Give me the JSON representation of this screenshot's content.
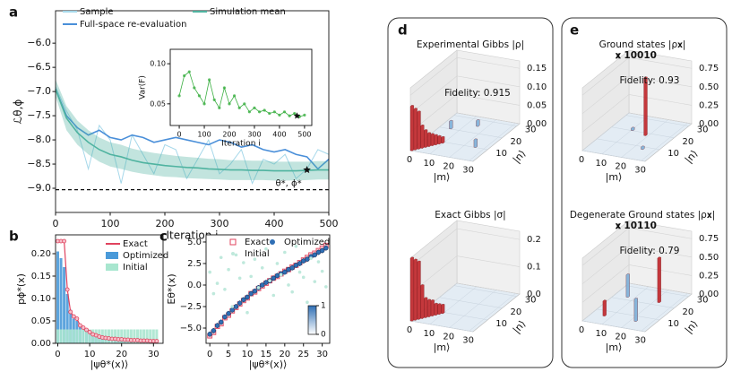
{
  "chart_data": [
    {
      "type": "line",
      "panel": "a",
      "xlim": [
        0,
        500
      ],
      "ylim": [
        -9.5,
        -5.33
      ],
      "xticks": [
        0,
        100,
        200,
        300,
        400,
        500
      ],
      "yticks": [
        {
          "value": -6,
          "label": "−6.0"
        },
        {
          "value": -6.5,
          "label": "−6.5"
        },
        {
          "value": -7,
          "label": "−7.0"
        },
        {
          "value": -7.5,
          "label": "−7.5"
        },
        {
          "value": -8,
          "label": "−8.0"
        },
        {
          "value": -8.5,
          "label": "−8.5"
        },
        {
          "value": -9,
          "label": "−9.0"
        }
      ],
      "xlabel": "Iteration i",
      "ylabel": "ℒθ,ϕ",
      "x": [
        0,
        20,
        40,
        60,
        80,
        100,
        120,
        140,
        160,
        180,
        200,
        220,
        240,
        260,
        280,
        300,
        320,
        340,
        360,
        380,
        400,
        420,
        440,
        460,
        480,
        500
      ],
      "series": [
        {
          "name": "Sample",
          "color": "#a6d8ea",
          "values": [
            -6.9,
            -7.4,
            -7.8,
            -8.6,
            -7.7,
            -8.0,
            -8.9,
            -7.9,
            -8.3,
            -8.7,
            -8.1,
            -8.2,
            -8.8,
            -8.4,
            -8.0,
            -8.7,
            -8.5,
            -8.2,
            -8.9,
            -8.4,
            -8.5,
            -8.3,
            -8.8,
            -8.6,
            -8.2,
            -8.3
          ]
        },
        {
          "name": "Full-space re-evaluation",
          "color": "#4a8fd9",
          "values": [
            -6.95,
            -7.5,
            -7.75,
            -7.9,
            -7.8,
            -7.95,
            -8.0,
            -7.9,
            -7.95,
            -8.05,
            -8.0,
            -7.95,
            -8.0,
            -8.05,
            -8.1,
            -8.0,
            -8.05,
            -8.15,
            -8.1,
            -8.2,
            -8.25,
            -8.2,
            -8.3,
            -8.35,
            -8.6,
            -8.4
          ]
        },
        {
          "name": "Simulation mean",
          "color": "#4fb3a0",
          "values": [
            -6.95,
            -7.55,
            -7.85,
            -8.05,
            -8.2,
            -8.3,
            -8.35,
            -8.42,
            -8.47,
            -8.5,
            -8.53,
            -8.55,
            -8.57,
            -8.58,
            -8.6,
            -8.61,
            -8.62,
            -8.62,
            -8.63,
            -8.63,
            -8.64,
            -8.64,
            -8.64,
            -8.63,
            -8.62,
            -8.62
          ],
          "band_high": [
            -6.75,
            -7.3,
            -7.6,
            -7.8,
            -7.95,
            -8.05,
            -8.1,
            -8.18,
            -8.23,
            -8.27,
            -8.3,
            -8.33,
            -8.35,
            -8.37,
            -8.39,
            -8.4,
            -8.42,
            -8.42,
            -8.43,
            -8.43,
            -8.45,
            -8.45,
            -8.45,
            -8.45,
            -8.44,
            -8.44
          ],
          "band_low": [
            -7.1,
            -7.8,
            -8.1,
            -8.3,
            -8.45,
            -8.55,
            -8.6,
            -8.66,
            -8.7,
            -8.73,
            -8.76,
            -8.77,
            -8.79,
            -8.8,
            -8.81,
            -8.82,
            -8.83,
            -8.83,
            -8.83,
            -8.83,
            -8.84,
            -8.84,
            -8.84,
            -8.83,
            -8.82,
            -8.82
          ]
        }
      ],
      "reference": -9.03,
      "annotation": {
        "text": "θ*, ϕ*",
        "x": 460,
        "y": -8.62
      }
    },
    {
      "type": "scatter",
      "xlim": [
        -36,
        529
      ],
      "ylim": [
        0.023,
        0.118
      ],
      "xticks": [
        0,
        100,
        200,
        300,
        400,
        500
      ],
      "yticks": [
        0.05,
        {
          "value": 0.1,
          "label": "0.10"
        }
      ],
      "xlabel": "Iteration i",
      "ylabel": "Var(F)",
      "connect": true,
      "x": [
        0,
        20,
        40,
        60,
        80,
        100,
        120,
        140,
        160,
        180,
        200,
        220,
        240,
        260,
        280,
        300,
        320,
        340,
        360,
        380,
        400,
        420,
        440,
        460,
        480,
        500
      ],
      "series": [
        {
          "color": "#3cb043",
          "marker": "circle",
          "values": [
            0.06,
            0.085,
            0.09,
            0.07,
            0.06,
            0.05,
            0.08,
            0.055,
            0.045,
            0.07,
            0.05,
            0.06,
            0.045,
            0.05,
            0.04,
            0.045,
            0.04,
            0.042,
            0.038,
            0.04,
            0.036,
            0.04,
            0.035,
            0.038,
            0.034,
            0.036
          ]
        }
      ],
      "annotation": {
        "x": 470,
        "y": 0.035
      }
    },
    {
      "type": "bar",
      "panel": "b",
      "xlim": [
        -0.7,
        33
      ],
      "ylim": [
        0,
        0.242
      ],
      "xticks": [
        0,
        10,
        20,
        30
      ],
      "yticks": [
        {
          "value": 0,
          "label": "0.00"
        },
        0.05,
        {
          "value": 0.1,
          "label": "0.10"
        },
        0.15,
        {
          "value": 0.2,
          "label": "0.20"
        }
      ],
      "xlabel": "|ψθ*(x)⟩",
      "ylabel": "pϕ*(x)",
      "x": [
        0,
        1,
        2,
        3,
        4,
        5,
        6,
        7,
        8,
        9,
        10,
        11,
        12,
        13,
        14,
        15,
        16,
        17,
        18,
        19,
        20,
        21,
        22,
        23,
        24,
        25,
        26,
        27,
        28,
        29,
        30,
        31
      ],
      "series": [
        {
          "name": "Exact",
          "color": "#e0435e",
          "mark": "line",
          "values": [
            0.228,
            0.228,
            0.228,
            0.12,
            0.07,
            0.06,
            0.055,
            0.04,
            0.035,
            0.03,
            0.025,
            0.02,
            0.018,
            0.015,
            0.013,
            0.012,
            0.011,
            0.01,
            0.01,
            0.009,
            0.009,
            0.008,
            0.008,
            0.007,
            0.007,
            0.007,
            0.006,
            0.006,
            0.006,
            0.005,
            0.005,
            0.005
          ]
        },
        {
          "name": "Optimized",
          "color": "#4a9ad9",
          "mark": "bar",
          "values": [
            0.205,
            0.19,
            0.17,
            0.11,
            0.075,
            0.055,
            0.05,
            0.04,
            0.03,
            0.028,
            0.025,
            0.02,
            0.015,
            0.012,
            0.01,
            0.01,
            0.009,
            0.008,
            0.008,
            0.007,
            0.007,
            0.006,
            0.006,
            0.006,
            0.005,
            0.005,
            0.005,
            0.004,
            0.004,
            0.004,
            0.003,
            0.003
          ]
        },
        {
          "name": "Initial",
          "color": "#a8e6cf",
          "mark": "bar",
          "values": [
            0.031,
            0.031,
            0.031,
            0.031,
            0.031,
            0.031,
            0.031,
            0.031,
            0.031,
            0.031,
            0.031,
            0.031,
            0.031,
            0.031,
            0.031,
            0.031,
            0.031,
            0.031,
            0.031,
            0.031,
            0.031,
            0.031,
            0.031,
            0.031,
            0.031,
            0.031,
            0.031,
            0.031,
            0.031,
            0.031,
            0.031,
            0.031
          ]
        }
      ]
    },
    {
      "type": "scatter",
      "panel": "c",
      "xlim": [
        -1,
        32
      ],
      "ylim": [
        -6.77,
        5.83
      ],
      "xticks": [
        0,
        5,
        10,
        15,
        20,
        25,
        30
      ],
      "yticks": [
        {
          "value": -5,
          "label": "−5.0"
        },
        {
          "value": -2.5,
          "label": "−2.5"
        },
        {
          "value": 0,
          "label": "0.0"
        },
        2.5,
        {
          "value": 5,
          "label": "5.0"
        }
      ],
      "xlabel": "|ψθ*(x)⟩",
      "ylabel": "Eθ*(x)",
      "x": [
        0,
        1,
        2,
        3,
        4,
        5,
        6,
        7,
        8,
        9,
        10,
        11,
        12,
        13,
        14,
        15,
        16,
        17,
        18,
        19,
        20,
        21,
        22,
        23,
        24,
        25,
        26,
        27,
        28,
        29,
        30,
        31
      ],
      "series": [
        {
          "name": "Exact",
          "color": "#e0435e",
          "marker": "square",
          "values": [
            -5.9,
            -5.5,
            -4.8,
            -4.5,
            -3.8,
            -3.5,
            -3.0,
            -2.6,
            -2.2,
            -1.8,
            -1.5,
            -1.0,
            -0.8,
            -0.4,
            -0.1,
            0.2,
            0.5,
            0.8,
            1.0,
            1.3,
            1.6,
            1.8,
            2.1,
            2.3,
            2.6,
            2.9,
            3.2,
            3.5,
            3.7,
            4.0,
            4.3,
            4.6
          ]
        },
        {
          "name": "Optimized",
          "color": "#2f6fb5",
          "marker": "circle",
          "values": [
            -5.7,
            -5.3,
            -4.7,
            -4.3,
            -3.7,
            -3.3,
            -2.9,
            -2.5,
            -2.1,
            -1.7,
            -1.4,
            -1.0,
            -0.7,
            -0.3,
            0,
            0.3,
            0.5,
            0.8,
            1.1,
            1.3,
            1.5,
            1.8,
            2.0,
            2.3,
            2.5,
            2.8,
            3.0,
            3.3,
            3.5,
            3.8,
            4.0,
            4.3
          ],
          "errors": [
            0.3,
            0.3,
            0.3,
            0.3,
            0.3,
            0.3,
            0.3,
            0.3,
            0.3,
            0.3,
            0.3,
            0.3,
            0.3,
            0.3,
            0.3,
            0.3,
            0.3,
            0.3,
            0.3,
            0.3,
            0.3,
            0.3,
            0.3,
            0.3,
            0.3,
            0.3,
            0.3,
            0.3,
            0.3,
            0.3,
            0.3,
            0.3
          ]
        },
        {
          "name": "Initial",
          "color": "#bfe9dc",
          "marker": "dot",
          "values": [
            1.5,
            -1.0,
            0.2,
            3.2,
            -0.5,
            1.8,
            -2.5,
            3.5,
            0.8,
            2.6,
            -3.2,
            1.0,
            3.0,
            -0.3,
            2.0,
            4.2,
            0.5,
            -1.2,
            2.5,
            1.2,
            3.8,
            0,
            -0.8,
            4.5,
            1.5,
            0.9,
            -2.0,
            3.1,
            0.4,
            2.7,
            1.6,
            -0.2
          ]
        }
      ],
      "colorbar": {
        "ticks": [
          0,
          1
        ],
        "colors": [
          "#ffffff",
          "#2f6fb5"
        ]
      }
    },
    {
      "type": "bar3d",
      "panel": "d",
      "title": "Experimental Gibbs |ρ|",
      "fidelity": "Fidelity: 0.915",
      "xlim": [
        0,
        32
      ],
      "ylim": [
        0,
        32
      ],
      "zlim": [
        0,
        0.17
      ],
      "xticks": [
        0,
        10,
        20,
        30
      ],
      "yticks": [
        0,
        10,
        20,
        30
      ],
      "zticks": [
        {
          "value": 0,
          "label": "0.00"
        },
        0.05,
        {
          "value": 0.1,
          "label": "0.10"
        },
        0.15
      ],
      "xlabel": "|m⟩",
      "ylabel": "|n⟩",
      "bars": [
        {
          "m": 0,
          "n": 0,
          "value": 0.12,
          "color": "#c0282d"
        },
        {
          "m": 1,
          "n": 1,
          "value": 0.11,
          "color": "#c0282d"
        },
        {
          "m": 2,
          "n": 2,
          "value": 0.1,
          "color": "#c0282d"
        },
        {
          "m": 3,
          "n": 3,
          "value": 0.06,
          "color": "#c0282d"
        },
        {
          "m": 4,
          "n": 4,
          "value": 0.045,
          "color": "#c0282d"
        },
        {
          "m": 5,
          "n": 5,
          "value": 0.035,
          "color": "#c0282d"
        },
        {
          "m": 6,
          "n": 6,
          "value": 0.03,
          "color": "#c0282d"
        },
        {
          "m": 7,
          "n": 7,
          "value": 0.025,
          "color": "#c0282d"
        },
        {
          "m": 8,
          "n": 8,
          "value": 0.02,
          "color": "#c0282d"
        },
        {
          "m": 9,
          "n": 9,
          "value": 0.015,
          "color": "#c0282d"
        },
        {
          "m": 5,
          "n": 20,
          "value": 0.02,
          "color": "#7fb0d8"
        },
        {
          "m": 15,
          "n": 25,
          "value": 0.015,
          "color": "#7fb0d8"
        },
        {
          "m": 25,
          "n": 10,
          "value": 0.02,
          "color": "#7fb0d8"
        }
      ]
    },
    {
      "type": "bar3d",
      "title": "Exact Gibbs |σ|",
      "xlim": [
        0,
        32
      ],
      "ylim": [
        0,
        32
      ],
      "zlim": [
        0,
        0.23
      ],
      "xticks": [
        0,
        10,
        20,
        30
      ],
      "yticks": [
        0,
        10,
        20,
        30
      ],
      "zticks": [
        {
          "value": 0,
          "label": "0.0"
        },
        0.1,
        0.2
      ],
      "xlabel": "|m⟩",
      "ylabel": "|n⟩",
      "bars": [
        {
          "m": 0,
          "n": 0,
          "value": 0.23,
          "color": "#c0282d"
        },
        {
          "m": 1,
          "n": 1,
          "value": 0.22,
          "color": "#c0282d"
        },
        {
          "m": 2,
          "n": 2,
          "value": 0.21,
          "color": "#c0282d"
        },
        {
          "m": 3,
          "n": 3,
          "value": 0.12,
          "color": "#c0282d"
        },
        {
          "m": 4,
          "n": 4,
          "value": 0.07,
          "color": "#c0282d"
        },
        {
          "m": 5,
          "n": 5,
          "value": 0.06,
          "color": "#c0282d"
        },
        {
          "m": 6,
          "n": 6,
          "value": 0.055,
          "color": "#c0282d"
        },
        {
          "m": 7,
          "n": 7,
          "value": 0.04,
          "color": "#c0282d"
        },
        {
          "m": 8,
          "n": 8,
          "value": 0.035,
          "color": "#c0282d"
        },
        {
          "m": 9,
          "n": 9,
          "value": 0.03,
          "color": "#c0282d"
        }
      ]
    },
    {
      "type": "bar3d",
      "panel": "e",
      "title": "Ground states |ρ𝐱|",
      "subtitle": "𝐱 10010",
      "fidelity": "Fidelity: 0.93",
      "xlim": [
        0,
        32
      ],
      "ylim": [
        0,
        32
      ],
      "zlim": [
        0,
        0.85
      ],
      "xticks": [
        0,
        10,
        20,
        30
      ],
      "yticks": [
        0,
        10,
        20,
        30
      ],
      "zticks": [
        {
          "value": 0,
          "label": "0.00"
        },
        0.25,
        {
          "value": 0.5,
          "label": "0.50"
        },
        0.75
      ],
      "xlabel": "|m⟩",
      "ylabel": "|n⟩",
      "bars": [
        {
          "m": 18,
          "n": 18,
          "value": 0.78,
          "color": "#c0282d"
        },
        {
          "m": 10,
          "n": 20,
          "value": 0.03,
          "color": "#7fb0d8"
        },
        {
          "m": 24,
          "n": 8,
          "value": 0.03,
          "color": "#7fb0d8"
        }
      ]
    },
    {
      "type": "bar3d",
      "title": "Degenerate Ground states |ρ𝐱|",
      "subtitle": "𝐱 10110",
      "fidelity": "Fidelity: 0.79",
      "xlim": [
        0,
        32
      ],
      "ylim": [
        0,
        32
      ],
      "zlim": [
        0,
        0.85
      ],
      "xticks": [
        0,
        10,
        20,
        30
      ],
      "yticks": [
        0,
        10,
        20,
        30
      ],
      "zticks": [
        {
          "value": 0,
          "label": "0.00"
        },
        0.25,
        {
          "value": 0.5,
          "label": "0.50"
        },
        0.75
      ],
      "xlabel": "|m⟩",
      "ylabel": "|n⟩",
      "bars": [
        {
          "m": 22,
          "n": 22,
          "value": 0.6,
          "color": "#c0282d"
        },
        {
          "m": 6,
          "n": 22,
          "value": 0.3,
          "color": "#7fb0d8"
        },
        {
          "m": 22,
          "n": 6,
          "value": 0.3,
          "color": "#7fb0d8"
        },
        {
          "m": 6,
          "n": 6,
          "value": 0.2,
          "color": "#c0282d"
        }
      ]
    }
  ]
}
